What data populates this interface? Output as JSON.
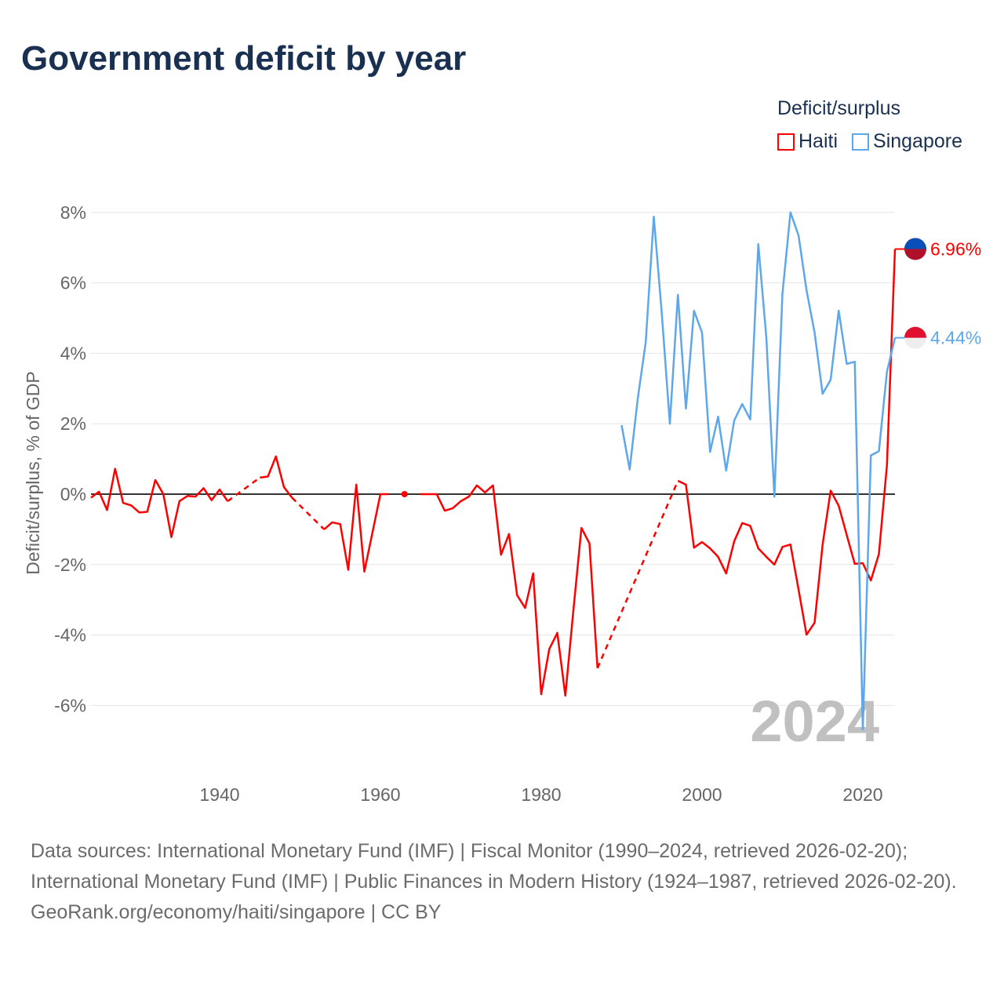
{
  "title": "Government deficit by year",
  "legend": {
    "title": "Deficit/surplus",
    "items": [
      {
        "label": "Haiti",
        "color": "#ff0000"
      },
      {
        "label": "Singapore",
        "color": "#5ea7ea"
      }
    ]
  },
  "watermark_year": "2024",
  "footer": {
    "sources": "Data sources: International Monetary Fund (IMF) | Fiscal Monitor (1990–2024, retrieved 2026-02-20); International Monetary Fund (IMF) | Public Finances in Modern History (1924–1987, retrieved 2026-02-20).",
    "credit": "GeoRank.org/economy/haiti/singapore | CC BY"
  },
  "chart_data": {
    "type": "line",
    "title": "Government deficit by year",
    "xlabel": "",
    "ylabel": "Deficit/surplus, % of GDP",
    "xlim": [
      1924,
      2024
    ],
    "ylim": [
      -7.5,
      8.2
    ],
    "x_ticks": [
      1940,
      1960,
      1980,
      2000,
      2020
    ],
    "y_ticks": [
      8,
      6,
      4,
      2,
      0,
      -2,
      -4,
      -6
    ],
    "y_tick_labels": [
      "8%",
      "6%",
      "4%",
      "2%",
      "0%",
      "-2%",
      "-4%",
      "-6%"
    ],
    "grid": true,
    "legend_position": "top-right",
    "series": [
      {
        "name": "Haiti",
        "color": "#ff0000",
        "start_year": 1924,
        "end_label": "6.96%",
        "values": [
          -0.1,
          0.07,
          -0.45,
          0.72,
          -0.25,
          -0.32,
          -0.52,
          -0.5,
          0.4,
          0.0,
          -1.22,
          -0.2,
          -0.05,
          -0.07,
          0.17,
          -0.17,
          0.13,
          -0.2,
          null,
          null,
          null,
          0.47,
          0.5,
          1.07,
          0.2,
          -0.1,
          null,
          null,
          null,
          -1.0,
          -0.8,
          -0.85,
          -2.15,
          0.27,
          -2.2,
          -1.1,
          0.0,
          0.0,
          null,
          0.0,
          null,
          0.0,
          0.0,
          0.0,
          -0.47,
          -0.4,
          -0.2,
          -0.07,
          0.25,
          0.05,
          0.25,
          -1.72,
          -1.13,
          -2.87,
          -3.23,
          -2.25,
          -5.68,
          -4.4,
          -3.94,
          -5.72,
          -3.3,
          -0.96,
          -1.4,
          -4.94,
          null,
          null,
          null,
          null,
          null,
          null,
          null,
          null,
          null,
          0.38,
          0.27,
          -1.52,
          -1.36,
          -1.54,
          -1.78,
          -2.25,
          -1.34,
          -0.82,
          -0.9,
          -1.54,
          -1.78,
          -2.0,
          -1.5,
          -1.43,
          -2.7,
          -3.99,
          -3.65,
          -1.43,
          0.1,
          -0.33,
          -1.16,
          -1.98,
          -1.96,
          -2.45,
          -1.7,
          0.82,
          6.96
        ]
      },
      {
        "name": "Singapore",
        "color": "#5ea7ea",
        "start_year": 1990,
        "end_label": "4.44%",
        "values": [
          1.96,
          0.7,
          2.7,
          4.32,
          7.88,
          5.12,
          2.0,
          5.66,
          2.43,
          5.21,
          4.59,
          1.2,
          2.2,
          0.67,
          2.09,
          2.56,
          2.12,
          7.1,
          4.45,
          -0.07,
          5.68,
          8.0,
          7.35,
          5.79,
          4.59,
          2.85,
          3.25,
          5.21,
          3.7,
          3.76,
          -6.68,
          1.1,
          1.22,
          3.47,
          4.44
        ]
      }
    ]
  }
}
